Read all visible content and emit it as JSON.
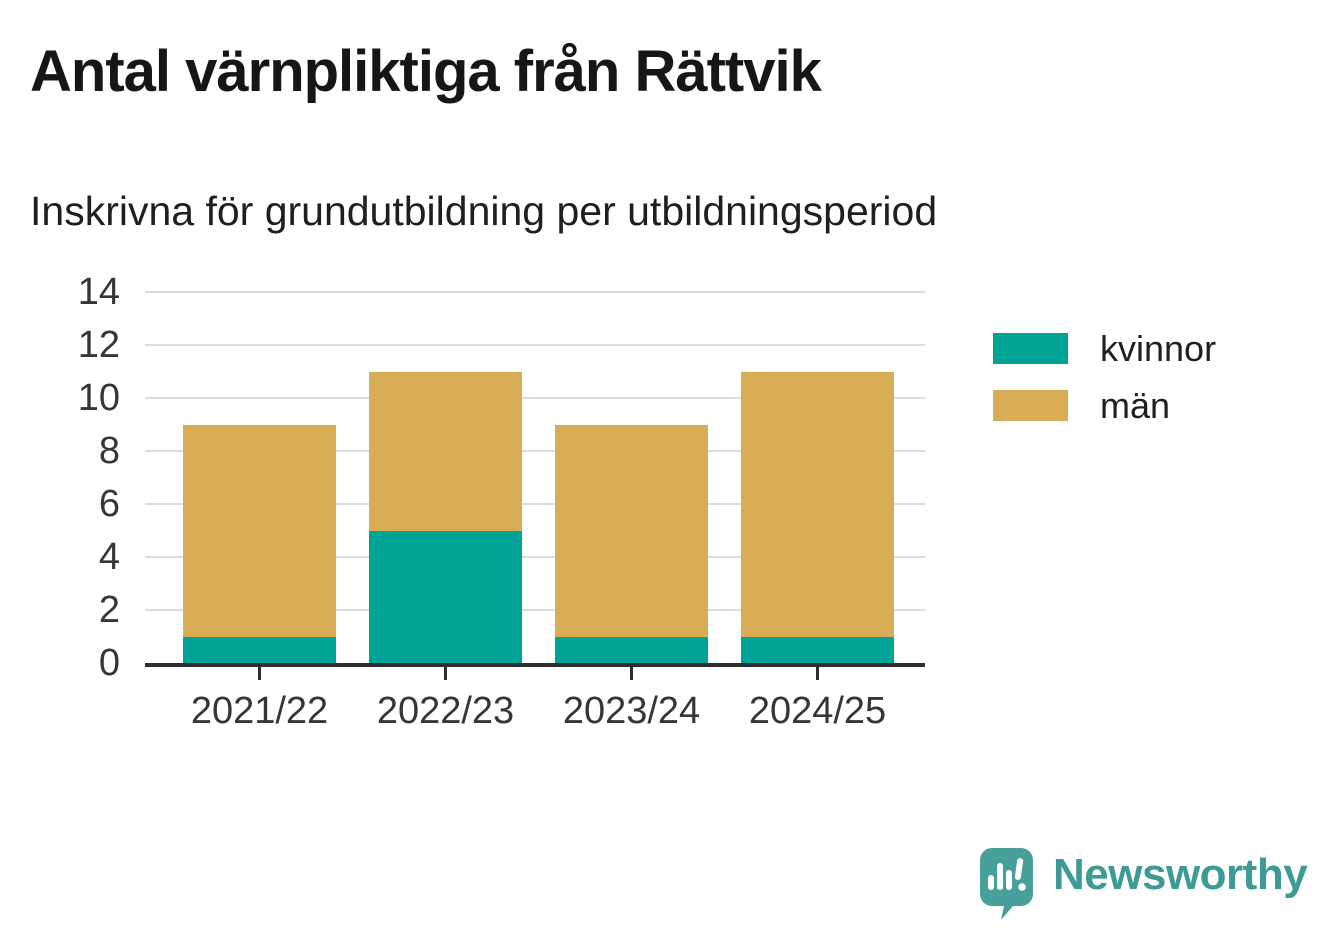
{
  "header": {
    "title": "Antal värnpliktiga från Rättvik",
    "subtitle": "Inskrivna för grundutbildning per utbildningsperiod"
  },
  "chart_data": {
    "type": "bar",
    "stacked": true,
    "title": "Antal värnpliktiga från Rättvik",
    "subtitle": "Inskrivna för grundutbildning per utbildningsperiod",
    "categories": [
      "2021/22",
      "2022/23",
      "2023/24",
      "2024/25"
    ],
    "series": [
      {
        "name": "kvinnor",
        "color": "#00a496",
        "values": [
          1,
          5,
          1,
          1
        ]
      },
      {
        "name": "män",
        "color": "#d9ad55",
        "values": [
          8,
          6,
          8,
          10
        ]
      }
    ],
    "stack_totals": [
      9,
      11,
      9,
      11
    ],
    "xlabel": "",
    "ylabel": "",
    "ylim": [
      0,
      14
    ],
    "yticks": [
      0,
      2,
      4,
      6,
      8,
      10,
      12,
      14
    ],
    "grid": true,
    "legend_position": "right"
  },
  "legend": {
    "items": [
      {
        "label": "kvinnor",
        "color": "#00a496"
      },
      {
        "label": "män",
        "color": "#d9ad55"
      }
    ]
  },
  "footer": {
    "brand": "Newsworthy"
  },
  "colors": {
    "background": "#ffffff",
    "title_text": "#161616",
    "axis_text": "#363636",
    "gridline": "#dcdcdc",
    "axis_line": "#2d2d2d",
    "kvinnor": "#00a496",
    "man": "#d9ad55",
    "brand_mark": "#47a19a",
    "brand_text": "#3d9a94"
  }
}
